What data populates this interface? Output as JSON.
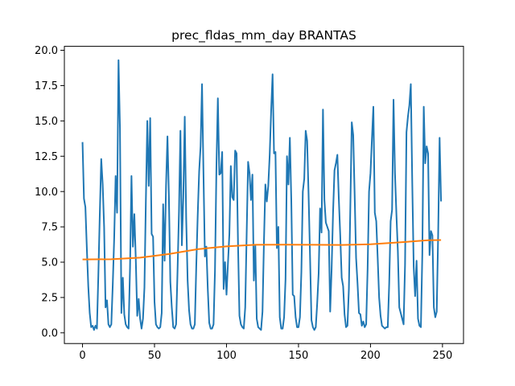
{
  "chart_data": {
    "type": "line",
    "title": "prec_fldas_mm_day BRANTAS",
    "xlabel": "",
    "ylabel": "",
    "xlim": [
      -12.6,
      264.6
    ],
    "ylim": [
      -0.76,
      20.28
    ],
    "xticks": [
      0,
      50,
      100,
      150,
      200,
      250
    ],
    "xtick_labels": [
      "0",
      "50",
      "100",
      "150",
      "200",
      "250"
    ],
    "yticks": [
      0.0,
      2.5,
      5.0,
      7.5,
      10.0,
      12.5,
      15.0,
      17.5,
      20.0
    ],
    "ytick_labels": [
      "0.0",
      "2.5",
      "5.0",
      "7.5",
      "10.0",
      "12.5",
      "15.0",
      "17.5",
      "20.0"
    ],
    "grid": false,
    "legend": "none",
    "series": [
      {
        "color": "#1f77b4",
        "points": [
          [
            0,
            13.5
          ],
          [
            1,
            9.5
          ],
          [
            2,
            8.9
          ],
          [
            3,
            6.0
          ],
          [
            4,
            3.3
          ],
          [
            5,
            1.4
          ],
          [
            6,
            0.4
          ],
          [
            7,
            0.5
          ],
          [
            8,
            0.2
          ],
          [
            9,
            0.5
          ],
          [
            10,
            0.3
          ],
          [
            11,
            4.1
          ],
          [
            12,
            8.4
          ],
          [
            13,
            12.3
          ],
          [
            14,
            10.5
          ],
          [
            15,
            7.5
          ],
          [
            16,
            1.8
          ],
          [
            17,
            2.3
          ],
          [
            18,
            0.6
          ],
          [
            19,
            0.4
          ],
          [
            20,
            0.6
          ],
          [
            21,
            3.4
          ],
          [
            22,
            6.7
          ],
          [
            23,
            11.1
          ],
          [
            24,
            8.5
          ],
          [
            25,
            19.3
          ],
          [
            26,
            14.5
          ],
          [
            27,
            1.4
          ],
          [
            28,
            3.9
          ],
          [
            29,
            1.3
          ],
          [
            30,
            0.6
          ],
          [
            31,
            0.4
          ],
          [
            32,
            0.3
          ],
          [
            33,
            4.6
          ],
          [
            34,
            11.1
          ],
          [
            35,
            6.1
          ],
          [
            36,
            8.4
          ],
          [
            37,
            5.2
          ],
          [
            38,
            1.2
          ],
          [
            39,
            2.4
          ],
          [
            40,
            1.0
          ],
          [
            41,
            0.3
          ],
          [
            42,
            1.0
          ],
          [
            43,
            3.2
          ],
          [
            44,
            9.4
          ],
          [
            45,
            15.0
          ],
          [
            46,
            10.4
          ],
          [
            47,
            15.2
          ],
          [
            48,
            7.0
          ],
          [
            49,
            6.8
          ],
          [
            50,
            2.2
          ],
          [
            51,
            0.6
          ],
          [
            52,
            0.4
          ],
          [
            53,
            0.3
          ],
          [
            54,
            0.4
          ],
          [
            55,
            1.4
          ],
          [
            56,
            9.1
          ],
          [
            57,
            5.1
          ],
          [
            58,
            10.4
          ],
          [
            59,
            13.9
          ],
          [
            60,
            9.6
          ],
          [
            61,
            3.6
          ],
          [
            62,
            1.8
          ],
          [
            63,
            0.4
          ],
          [
            64,
            0.3
          ],
          [
            65,
            0.6
          ],
          [
            66,
            4.4
          ],
          [
            67,
            8.6
          ],
          [
            68,
            14.3
          ],
          [
            69,
            6.2
          ],
          [
            70,
            9.6
          ],
          [
            71,
            15.3
          ],
          [
            72,
            8.1
          ],
          [
            73,
            3.7
          ],
          [
            74,
            1.6
          ],
          [
            75,
            0.6
          ],
          [
            76,
            0.3
          ],
          [
            77,
            0.3
          ],
          [
            78,
            0.6
          ],
          [
            79,
            4.7
          ],
          [
            80,
            8.3
          ],
          [
            81,
            11.4
          ],
          [
            82,
            13.2
          ],
          [
            83,
            17.6
          ],
          [
            84,
            11.3
          ],
          [
            85,
            5.4
          ],
          [
            86,
            6.1
          ],
          [
            87,
            3.1
          ],
          [
            88,
            0.7
          ],
          [
            89,
            0.3
          ],
          [
            90,
            0.3
          ],
          [
            91,
            0.6
          ],
          [
            92,
            4.4
          ],
          [
            93,
            11.7
          ],
          [
            94,
            16.6
          ],
          [
            95,
            11.2
          ],
          [
            96,
            11.3
          ],
          [
            97,
            12.8
          ],
          [
            98,
            3.1
          ],
          [
            99,
            5.0
          ],
          [
            100,
            2.7
          ],
          [
            101,
            4.9
          ],
          [
            102,
            7.0
          ],
          [
            103,
            11.8
          ],
          [
            104,
            9.6
          ],
          [
            105,
            9.4
          ],
          [
            106,
            12.9
          ],
          [
            107,
            12.7
          ],
          [
            108,
            6.3
          ],
          [
            109,
            1.2
          ],
          [
            110,
            0.6
          ],
          [
            111,
            0.4
          ],
          [
            112,
            0.3
          ],
          [
            113,
            1.8
          ],
          [
            114,
            7.0
          ],
          [
            115,
            12.1
          ],
          [
            116,
            11.3
          ],
          [
            117,
            9.4
          ],
          [
            118,
            11.2
          ],
          [
            119,
            3.7
          ],
          [
            120,
            6.2
          ],
          [
            121,
            1.0
          ],
          [
            122,
            0.4
          ],
          [
            123,
            0.3
          ],
          [
            124,
            0.2
          ],
          [
            125,
            1.5
          ],
          [
            126,
            6.4
          ],
          [
            127,
            10.5
          ],
          [
            128,
            9.3
          ],
          [
            129,
            10.4
          ],
          [
            130,
            12.6
          ],
          [
            131,
            15.7
          ],
          [
            132,
            18.3
          ],
          [
            133,
            12.7
          ],
          [
            134,
            12.8
          ],
          [
            135,
            6.0
          ],
          [
            136,
            7.5
          ],
          [
            137,
            1.1
          ],
          [
            138,
            0.3
          ],
          [
            139,
            0.3
          ],
          [
            140,
            1.1
          ],
          [
            141,
            3.8
          ],
          [
            142,
            12.5
          ],
          [
            143,
            10.5
          ],
          [
            144,
            13.8
          ],
          [
            145,
            9.4
          ],
          [
            146,
            2.7
          ],
          [
            147,
            2.6
          ],
          [
            148,
            1.1
          ],
          [
            149,
            0.4
          ],
          [
            150,
            0.4
          ],
          [
            151,
            1.1
          ],
          [
            152,
            4.3
          ],
          [
            153,
            10.0
          ],
          [
            154,
            10.9
          ],
          [
            155,
            14.3
          ],
          [
            156,
            13.6
          ],
          [
            157,
            9.8
          ],
          [
            158,
            5.5
          ],
          [
            159,
            0.9
          ],
          [
            160,
            0.4
          ],
          [
            161,
            0.2
          ],
          [
            162,
            0.4
          ],
          [
            163,
            2.1
          ],
          [
            164,
            4.2
          ],
          [
            165,
            8.8
          ],
          [
            166,
            7.1
          ],
          [
            167,
            15.8
          ],
          [
            168,
            9.4
          ],
          [
            169,
            7.8
          ],
          [
            170,
            7.5
          ],
          [
            171,
            7.2
          ],
          [
            172,
            1.5
          ],
          [
            173,
            4.5
          ],
          [
            174,
            8.5
          ],
          [
            175,
            11.5
          ],
          [
            176,
            12.0
          ],
          [
            177,
            12.6
          ],
          [
            178,
            9.5
          ],
          [
            179,
            6.9
          ],
          [
            180,
            3.9
          ],
          [
            181,
            3.3
          ],
          [
            182,
            1.3
          ],
          [
            183,
            0.4
          ],
          [
            184,
            0.5
          ],
          [
            185,
            3.1
          ],
          [
            186,
            8.9
          ],
          [
            187,
            14.9
          ],
          [
            188,
            14.0
          ],
          [
            189,
            9.8
          ],
          [
            190,
            5.3
          ],
          [
            191,
            3.5
          ],
          [
            192,
            1.4
          ],
          [
            193,
            1.3
          ],
          [
            194,
            0.5
          ],
          [
            195,
            0.8
          ],
          [
            196,
            0.4
          ],
          [
            197,
            0.6
          ],
          [
            198,
            4.5
          ],
          [
            199,
            10.0
          ],
          [
            200,
            11.3
          ],
          [
            201,
            13.7
          ],
          [
            202,
            16.0
          ],
          [
            203,
            8.5
          ],
          [
            204,
            7.9
          ],
          [
            205,
            5.3
          ],
          [
            206,
            2.5
          ],
          [
            207,
            1.2
          ],
          [
            208,
            0.5
          ],
          [
            209,
            0.4
          ],
          [
            210,
            0.3
          ],
          [
            211,
            0.4
          ],
          [
            212,
            0.4
          ],
          [
            213,
            3.5
          ],
          [
            214,
            7.9
          ],
          [
            215,
            8.7
          ],
          [
            216,
            16.5
          ],
          [
            217,
            11.3
          ],
          [
            218,
            8.4
          ],
          [
            219,
            5.8
          ],
          [
            220,
            1.8
          ],
          [
            221,
            1.4
          ],
          [
            222,
            1.0
          ],
          [
            223,
            0.6
          ],
          [
            224,
            4.8
          ],
          [
            225,
            14.2
          ],
          [
            226,
            15.3
          ],
          [
            227,
            16.1
          ],
          [
            228,
            17.6
          ],
          [
            229,
            10.7
          ],
          [
            230,
            4.7
          ],
          [
            231,
            2.6
          ],
          [
            232,
            5.1
          ],
          [
            233,
            1.0
          ],
          [
            234,
            0.5
          ],
          [
            235,
            0.4
          ],
          [
            236,
            5.6
          ],
          [
            237,
            16.0
          ],
          [
            238,
            12.0
          ],
          [
            239,
            13.2
          ],
          [
            240,
            12.7
          ],
          [
            241,
            5.5
          ],
          [
            242,
            7.2
          ],
          [
            243,
            6.9
          ],
          [
            244,
            1.8
          ],
          [
            245,
            1.1
          ],
          [
            246,
            1.5
          ],
          [
            247,
            7.0
          ],
          [
            248,
            13.8
          ],
          [
            249,
            9.3
          ]
        ]
      },
      {
        "color": "#ff7f0e",
        "points": [
          [
            0,
            5.19
          ],
          [
            20,
            5.21
          ],
          [
            40,
            5.32
          ],
          [
            60,
            5.58
          ],
          [
            80,
            5.92
          ],
          [
            100,
            6.12
          ],
          [
            120,
            6.23
          ],
          [
            140,
            6.24
          ],
          [
            160,
            6.23
          ],
          [
            180,
            6.22
          ],
          [
            200,
            6.27
          ],
          [
            220,
            6.4
          ],
          [
            240,
            6.55
          ],
          [
            249,
            6.57
          ]
        ]
      }
    ]
  }
}
